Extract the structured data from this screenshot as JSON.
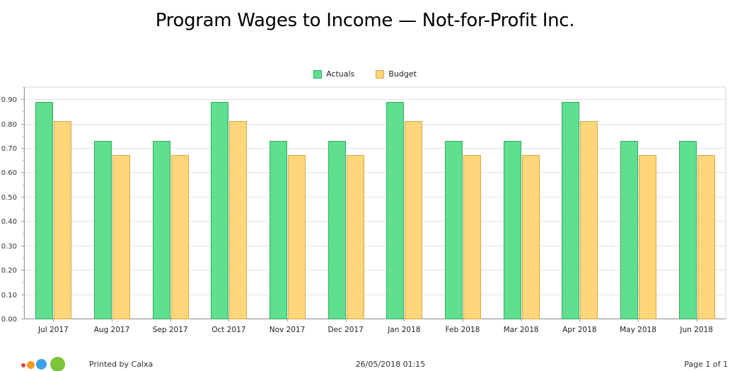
{
  "chart_data": {
    "type": "bar",
    "title": "Program Wages to Income — Not-for-Profit Inc.",
    "categories": [
      "Jul 2017",
      "Aug 2017",
      "Sep 2017",
      "Oct 2017",
      "Nov 2017",
      "Dec 2017",
      "Jan 2018",
      "Feb 2018",
      "Mar 2018",
      "Apr 2018",
      "May 2018",
      "Jun 2018"
    ],
    "series": [
      {
        "name": "Actuals",
        "color": "#5ee08e",
        "border": "#3aa864",
        "values": [
          0.89,
          0.73,
          0.73,
          0.89,
          0.73,
          0.73,
          0.89,
          0.73,
          0.73,
          0.89,
          0.73,
          0.73
        ]
      },
      {
        "name": "Budget",
        "color": "#ffd67a",
        "border": "#d6a84a",
        "values": [
          0.81,
          0.67,
          0.67,
          0.81,
          0.67,
          0.67,
          0.81,
          0.67,
          0.67,
          0.81,
          0.67,
          0.67
        ]
      }
    ],
    "ylim": [
      0,
      0.95
    ],
    "yticks": [
      "0.00",
      "0.10",
      "0.20",
      "0.30",
      "0.40",
      "0.50",
      "0.60",
      "0.70",
      "0.80",
      "0.90"
    ],
    "grid": true,
    "legend_position": "top-center"
  },
  "footer": {
    "printed_by": "Printed by Calxa",
    "date": "26/05/2018 01:15",
    "page": "Page 1 of 1"
  },
  "logo": {
    "name": "calxa-logo",
    "colors": [
      "#e8403a",
      "#f59a23",
      "#3aa0e8",
      "#7cc43a"
    ]
  }
}
